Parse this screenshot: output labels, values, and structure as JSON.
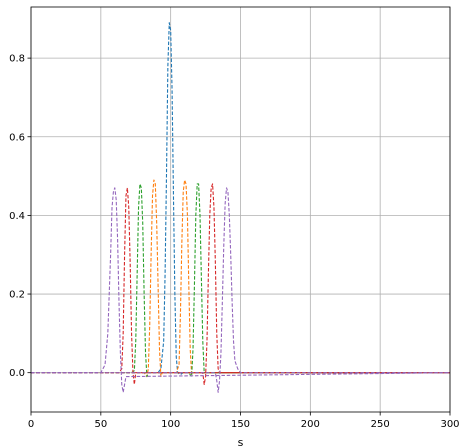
{
  "chart_data": {
    "type": "line",
    "title": "",
    "xlabel": "s",
    "ylabel": "",
    "xlim": [
      0,
      300
    ],
    "ylim": [
      -0.1,
      0.93
    ],
    "grid": true,
    "legend": "none",
    "line_style": "dashed",
    "x_ticks": [
      0,
      50,
      100,
      150,
      200,
      250,
      300
    ],
    "y_ticks": [
      0.0,
      0.2,
      0.4,
      0.6,
      0.8
    ],
    "x_tick_labels": [
      "0",
      "50",
      "100",
      "150",
      "200",
      "250",
      "300"
    ],
    "y_tick_labels": [
      "0.0",
      "0.2",
      "0.4",
      "0.6",
      "0.8"
    ],
    "series": [
      {
        "color": "#1f77b4",
        "x": [
          0,
          91,
          93,
          95,
          96,
          97,
          98,
          99,
          100,
          101,
          102,
          103,
          104,
          105,
          107,
          109,
          300
        ],
        "y": [
          0,
          0,
          0.01,
          0.08,
          0.25,
          0.5,
          0.78,
          0.89,
          0.87,
          0.72,
          0.45,
          0.2,
          0.04,
          0.0,
          -0.005,
          0,
          0
        ]
      },
      {
        "color": "#ff7f0e",
        "x": [
          0,
          81,
          83,
          84,
          85,
          86,
          87,
          88,
          89,
          90,
          91,
          92,
          93,
          94,
          95,
          300
        ],
        "y": [
          0,
          0,
          -0.01,
          0.01,
          0.12,
          0.3,
          0.45,
          0.49,
          0.48,
          0.38,
          0.22,
          0.06,
          -0.01,
          0.0,
          0,
          0
        ]
      },
      {
        "color": "#ff7f0e",
        "x": [
          0,
          104,
          106,
          107,
          108,
          109,
          110,
          111,
          112,
          113,
          114,
          115,
          116,
          117,
          300
        ],
        "y": [
          0,
          0,
          0.02,
          0.15,
          0.33,
          0.46,
          0.49,
          0.48,
          0.4,
          0.22,
          0.06,
          -0.005,
          0.0,
          0,
          0
        ]
      },
      {
        "color": "#2ca02c",
        "x": [
          0,
          72,
          74,
          75,
          76,
          77,
          78,
          79,
          80,
          81,
          82,
          83,
          84,
          85,
          300
        ],
        "y": [
          0,
          0,
          0.005,
          0.08,
          0.25,
          0.42,
          0.48,
          0.47,
          0.38,
          0.2,
          0.05,
          -0.01,
          0.0,
          0,
          0
        ]
      },
      {
        "color": "#2ca02c",
        "x": [
          0,
          113,
          115,
          116,
          117,
          118,
          119,
          120,
          121,
          122,
          123,
          124,
          125,
          126,
          300
        ],
        "y": [
          0,
          0,
          -0.01,
          0.06,
          0.22,
          0.4,
          0.48,
          0.48,
          0.4,
          0.24,
          0.08,
          0.0,
          0.0,
          0,
          0
        ]
      },
      {
        "color": "#d62728",
        "x": [
          0,
          63,
          65,
          66,
          67,
          68,
          69,
          70,
          71,
          72,
          73,
          74,
          75,
          300
        ],
        "y": [
          0,
          0,
          0.01,
          0.1,
          0.3,
          0.45,
          0.47,
          0.42,
          0.28,
          0.1,
          0.0,
          -0.03,
          0.0,
          0
        ]
      },
      {
        "color": "#d62728",
        "x": [
          0,
          123,
          124,
          125,
          126,
          127,
          128,
          129,
          130,
          131,
          132,
          133,
          134,
          135,
          300
        ],
        "y": [
          0,
          0,
          -0.03,
          -0.01,
          0.08,
          0.25,
          0.4,
          0.47,
          0.48,
          0.42,
          0.28,
          0.1,
          0.01,
          0.0,
          0
        ]
      },
      {
        "color": "#9467bd",
        "x": [
          0,
          50,
          53,
          55,
          57,
          58,
          59,
          60,
          61,
          62,
          63,
          64,
          65,
          66,
          68,
          300
        ],
        "y": [
          0,
          0,
          0.02,
          0.1,
          0.3,
          0.42,
          0.46,
          0.47,
          0.44,
          0.34,
          0.18,
          0.05,
          -0.03,
          -0.05,
          -0.01,
          0
        ]
      },
      {
        "color": "#9467bd",
        "x": [
          0,
          132,
          133,
          134,
          135,
          136,
          137,
          138,
          139,
          140,
          141,
          142,
          143,
          144,
          145,
          146,
          148,
          150,
          300
        ],
        "y": [
          0,
          0,
          -0.02,
          -0.05,
          -0.02,
          0.05,
          0.18,
          0.32,
          0.43,
          0.47,
          0.46,
          0.4,
          0.3,
          0.18,
          0.08,
          0.03,
          0.01,
          0,
          0
        ]
      }
    ]
  }
}
